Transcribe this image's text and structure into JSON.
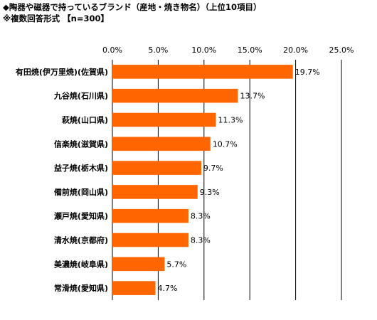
{
  "header": {
    "title": "◆陶器や磁器で持っているブランド（産地・焼き物名）（上位10項目）",
    "subtitle": "※複数回答形式 【n=300】"
  },
  "chart_data": {
    "type": "bar",
    "orientation": "horizontal",
    "title": "◆陶器や磁器で持っているブランド（産地・焼き物名）（上位10項目）",
    "subtitle": "※複数回答形式 【n=300】",
    "categories": [
      "有田焼(伊万里焼)(佐賀県)",
      "九谷焼(石川県)",
      "萩焼(山口県)",
      "信楽焼(滋賀県)",
      "益子焼(栃木県)",
      "備前焼(岡山県)",
      "瀬戸焼(愛知県)",
      "清水焼(京都府)",
      "美濃焼(岐阜県)",
      "常滑焼(愛知県)"
    ],
    "values": [
      19.7,
      13.7,
      11.3,
      10.7,
      9.7,
      9.3,
      8.3,
      8.3,
      5.7,
      4.7
    ],
    "value_labels": [
      "19.7%",
      "13.7%",
      "11.3%",
      "10.7%",
      "9.7%",
      "9.3%",
      "8.3%",
      "8.3%",
      "5.7%",
      "4.7%"
    ],
    "xticks": [
      "0.0%",
      "5.0%",
      "10.0%",
      "15.0%",
      "20.0%",
      "25.0%"
    ],
    "xlim": [
      0,
      25
    ],
    "grid": true,
    "bar_color": "#FF6600"
  }
}
